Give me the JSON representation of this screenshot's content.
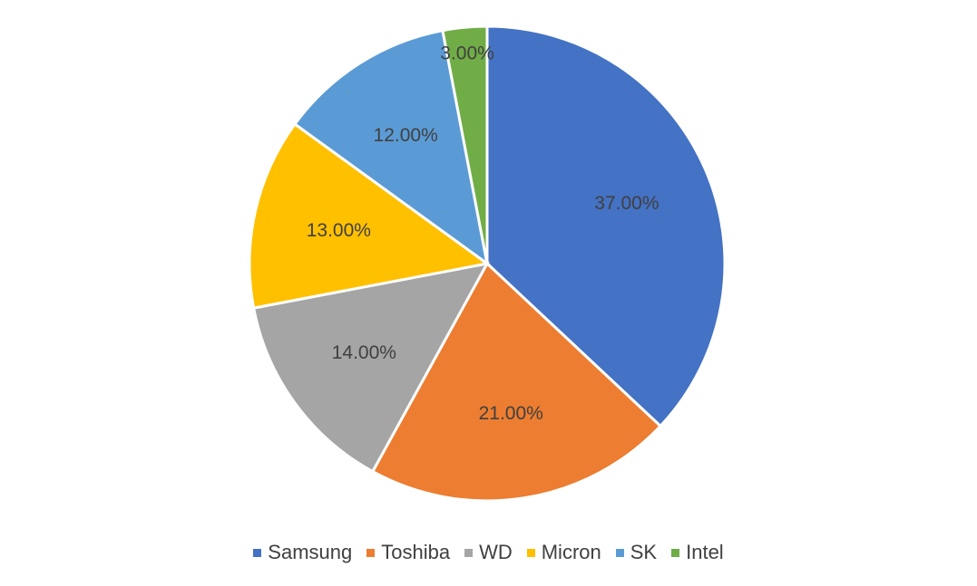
{
  "chart_data": {
    "type": "pie",
    "title": "",
    "categories": [
      "Samsung",
      "Toshiba",
      "WD",
      "Micron",
      "SK",
      "Intel"
    ],
    "values": [
      37.0,
      21.0,
      14.0,
      13.0,
      12.0,
      3.0
    ],
    "value_labels": [
      "37.00%",
      "21.00%",
      "14.00%",
      "13.00%",
      "12.00%",
      "3.00%"
    ],
    "colors": [
      "#4472C4",
      "#ED7D31",
      "#A5A5A5",
      "#FFC000",
      "#5B9BD5",
      "#70AD47"
    ],
    "start_angle": "12 o'clock",
    "direction": "clockwise",
    "legend_position": "bottom"
  },
  "legend": {
    "items": [
      {
        "label": "Samsung",
        "color": "#4472C4"
      },
      {
        "label": "Toshiba",
        "color": "#ED7D31"
      },
      {
        "label": "WD",
        "color": "#A5A5A5"
      },
      {
        "label": "Micron",
        "color": "#FFC000"
      },
      {
        "label": "SK",
        "color": "#5B9BD5"
      },
      {
        "label": "Intel",
        "color": "#70AD47"
      }
    ]
  }
}
